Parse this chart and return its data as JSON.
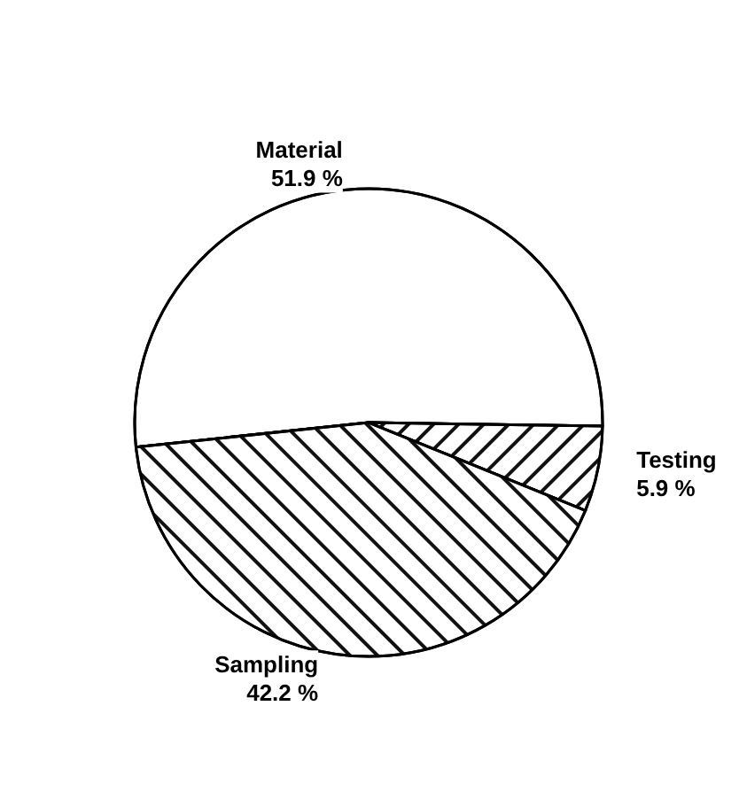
{
  "chart_data": {
    "type": "pie",
    "categories": [
      "Material",
      "Testing",
      "Sampling"
    ],
    "values": [
      51.9,
      5.9,
      42.2
    ],
    "colors": [
      "#ffffff",
      "#ffffff",
      "#ffffff"
    ],
    "value_labels": [
      "51.9 %",
      "5.9 %",
      "42.2 %"
    ],
    "legend": false
  }
}
